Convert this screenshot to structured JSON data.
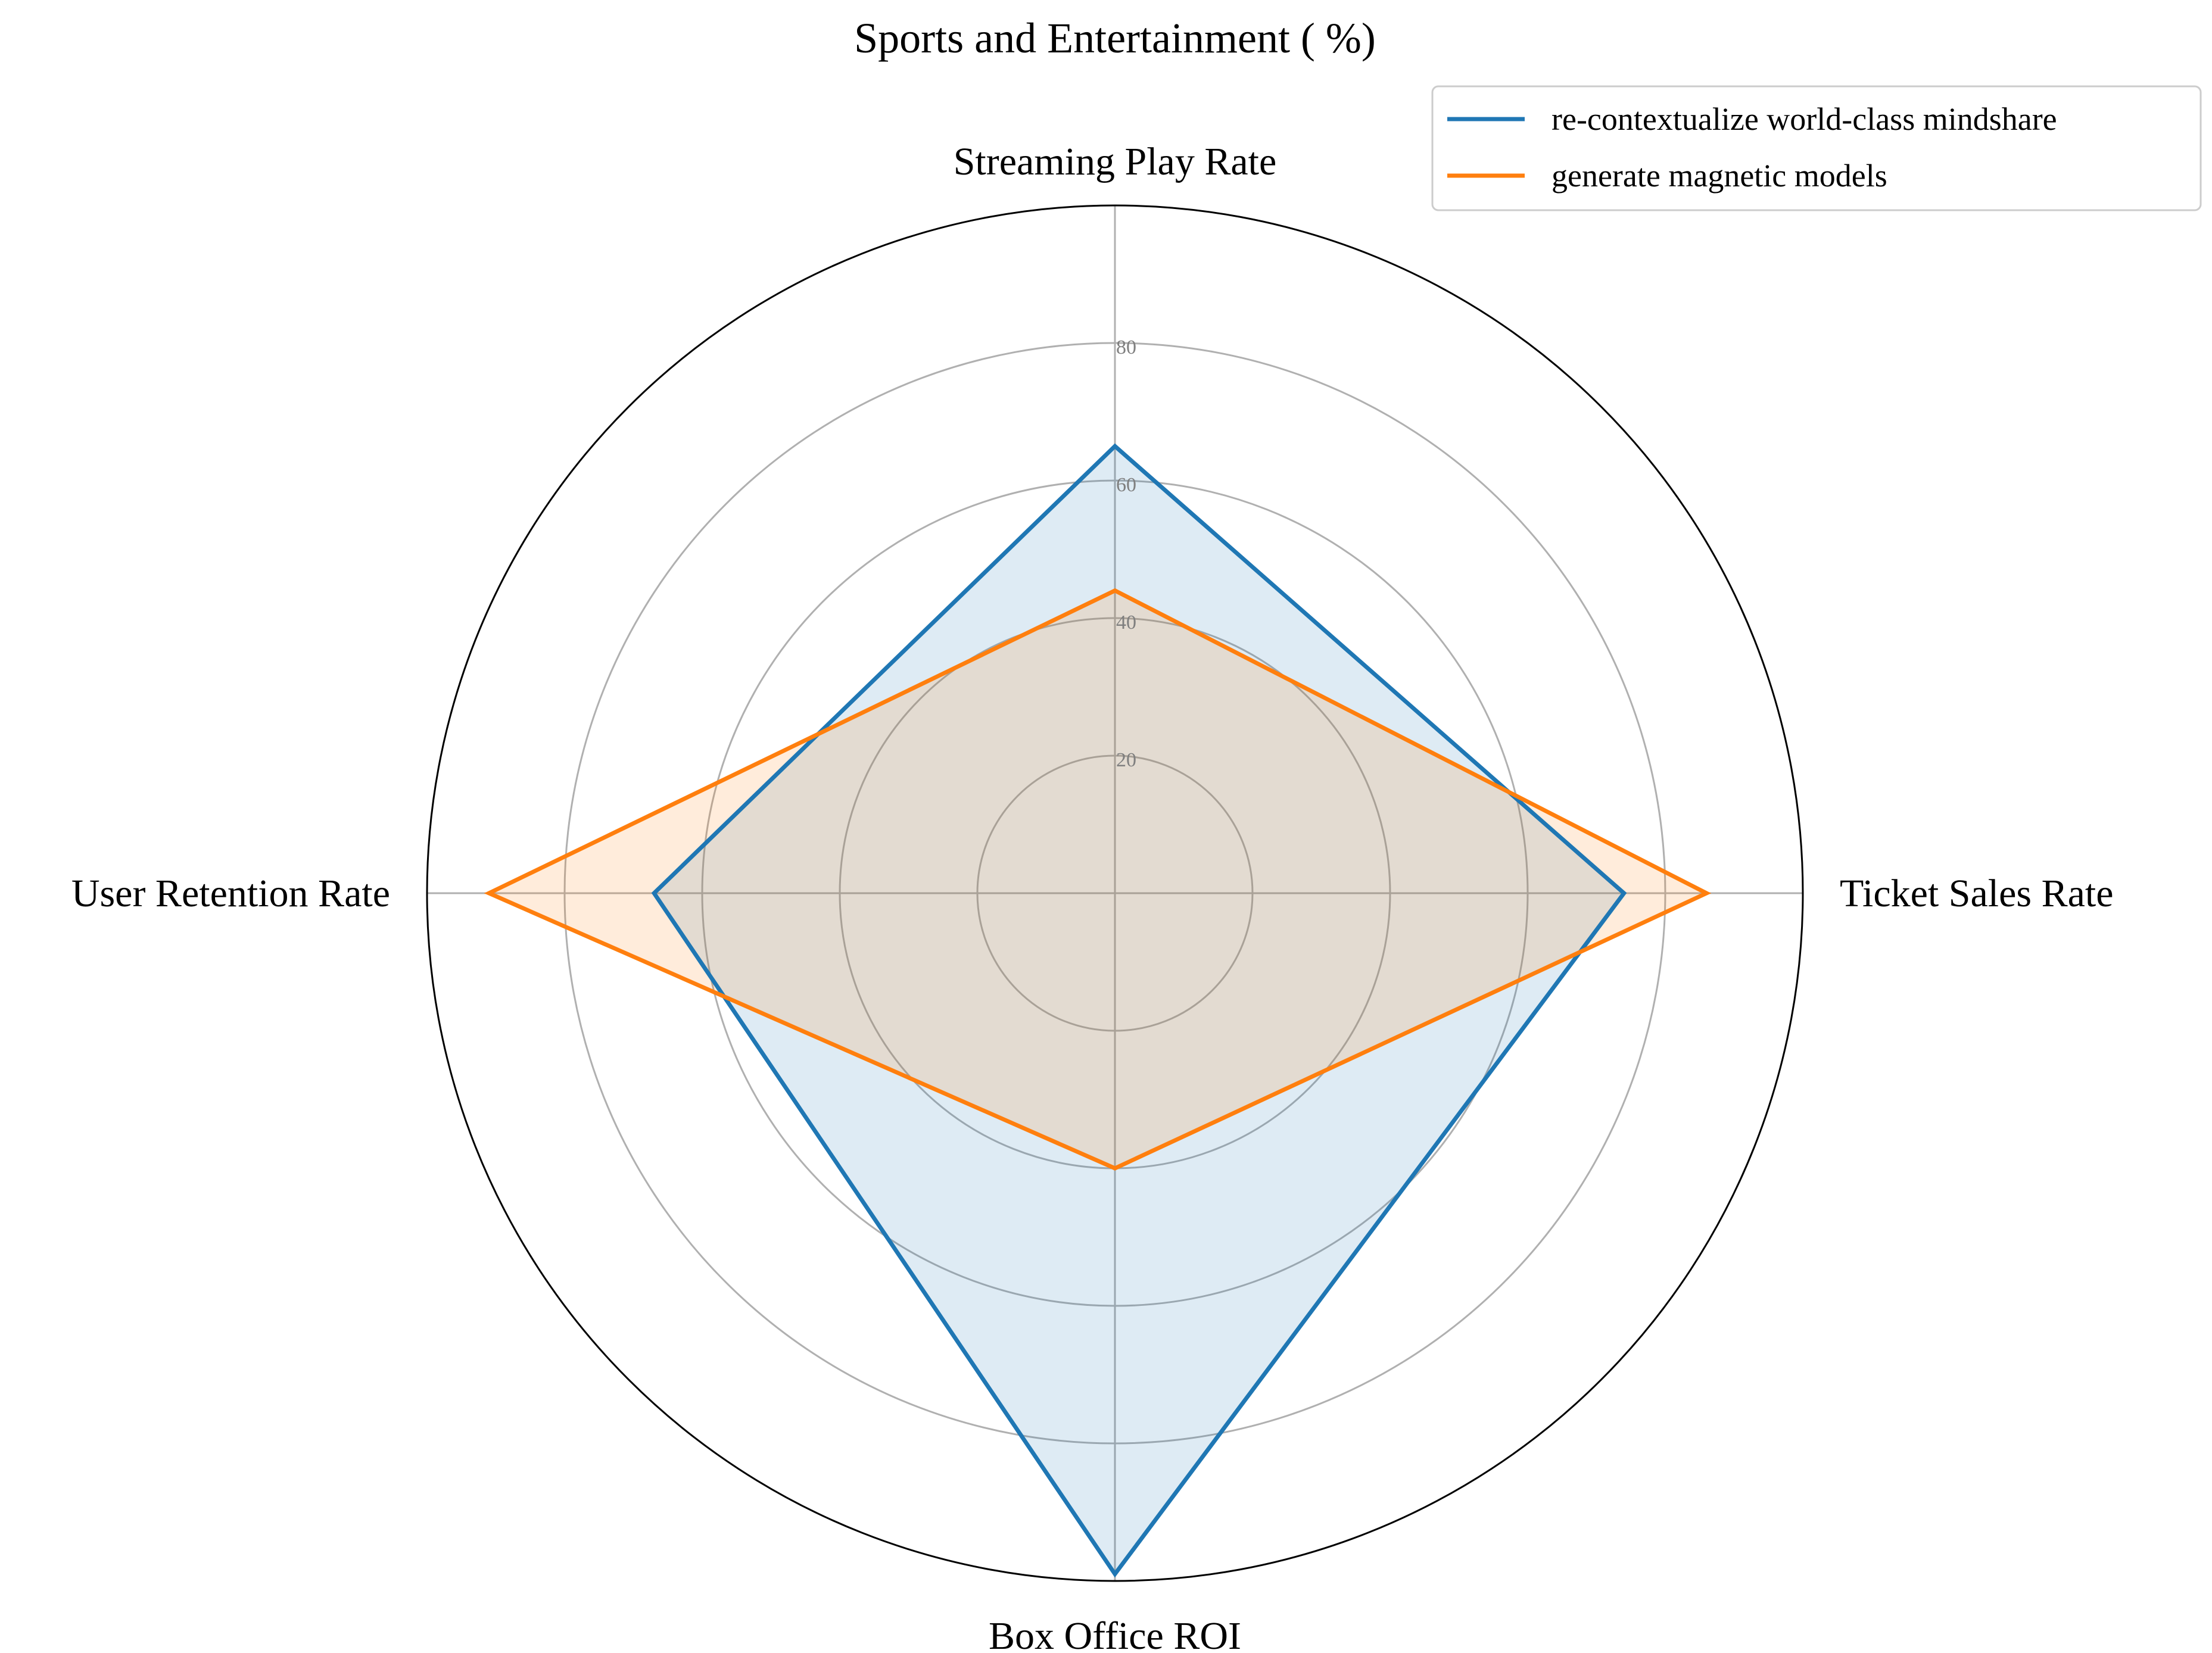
{
  "chart_data": {
    "type": "radar",
    "title": "Sports and Entertainment ( %)",
    "axes": [
      "Streaming Play Rate",
      "Ticket Sales Rate",
      "Box Office ROI",
      "User Retention Rate"
    ],
    "rlim": [
      0,
      100
    ],
    "radial_ticks": [
      20,
      40,
      60,
      80
    ],
    "grid": true,
    "legend_position": "top-right",
    "series": [
      {
        "name": "re-contextualize world-class mindshare",
        "values": [
          65,
          74,
          99,
          67
        ],
        "color": "#1f77b4"
      },
      {
        "name": "generate magnetic models",
        "values": [
          44,
          86,
          40,
          91
        ],
        "color": "#ff7f0e"
      }
    ]
  }
}
